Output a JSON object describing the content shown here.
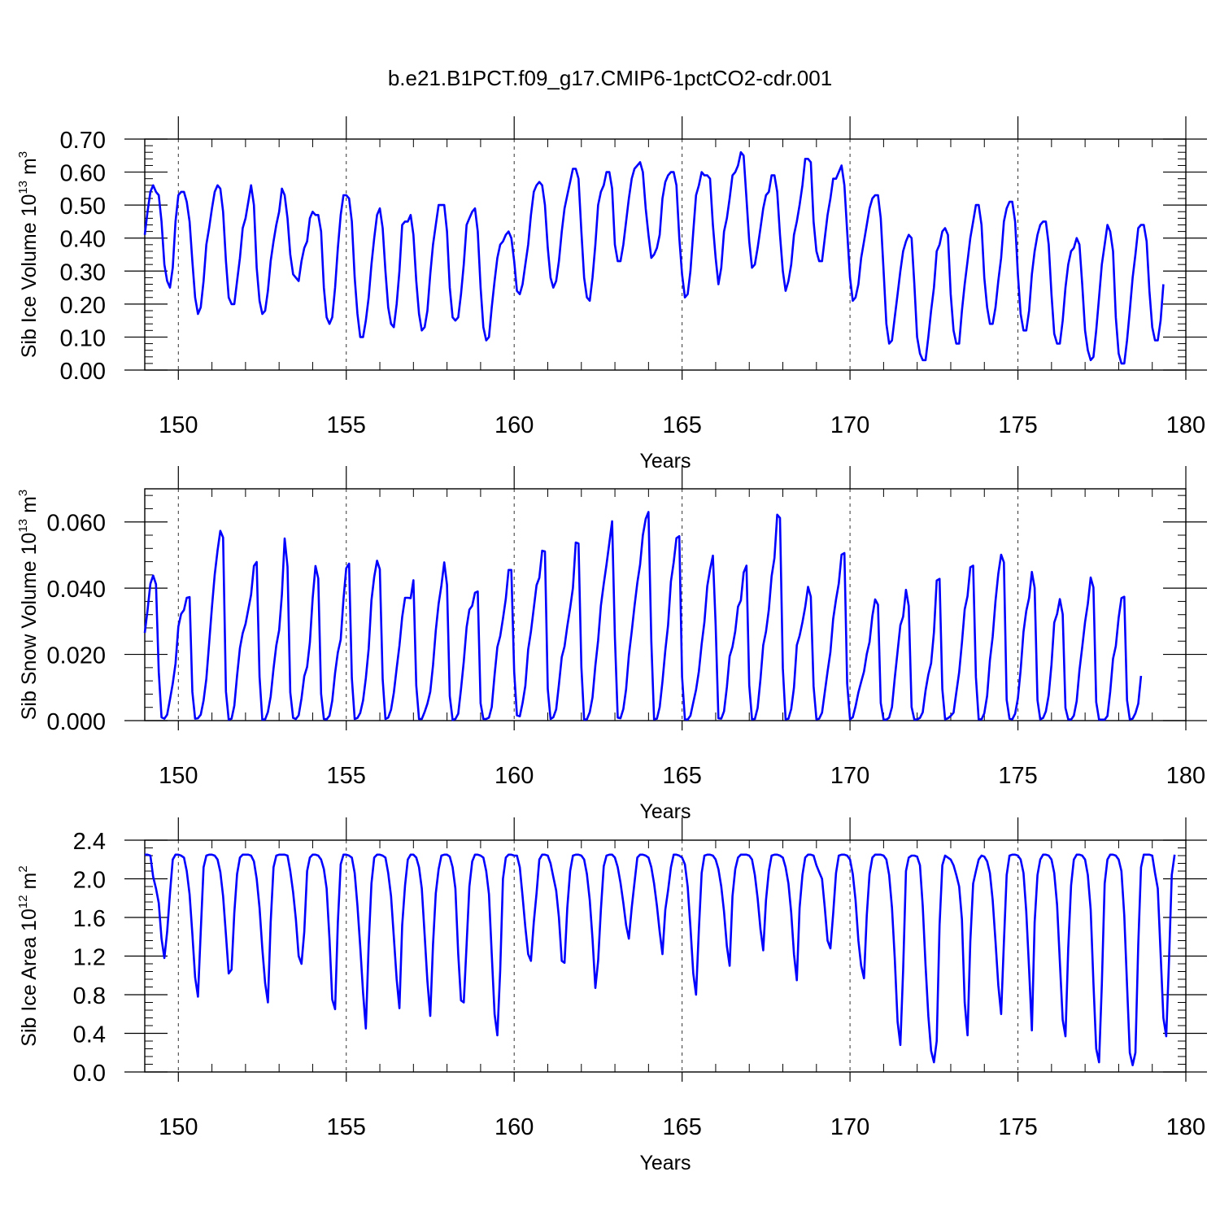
{
  "figure": {
    "title": "b.e21.B1PCT.f09_g17.CMIP6-1pctCO2-cdr.001"
  },
  "chart_data": [
    {
      "type": "line",
      "title": "",
      "xlabel": "Years",
      "ylabel_main": "Sib Ice Volume 10",
      "ylabel_exp": "13",
      "ylabel_unit": " m",
      "ylabel_unit_exp": "3",
      "xlim": [
        149,
        180
      ],
      "ylim": [
        0,
        0.7
      ],
      "x_ticks": [
        150,
        155,
        160,
        165,
        170,
        175,
        180
      ],
      "x_tick_labels": [
        "150",
        "155",
        "160",
        "165",
        "170",
        "175",
        "180"
      ],
      "y_ticks": [
        0,
        0.1,
        0.2,
        0.3,
        0.4,
        0.5,
        0.6,
        0.7
      ],
      "y_tick_labels": [
        "0.00",
        "0.10",
        "0.20",
        "0.30",
        "0.40",
        "0.50",
        "0.60",
        "0.70"
      ],
      "grid": "vertical dashed at major x ticks",
      "color": "#0000ff",
      "x_start": 149.0,
      "x_step": 0.08333,
      "values": [
        0.41,
        0.48,
        0.54,
        0.56,
        0.54,
        0.53,
        0.45,
        0.32,
        0.27,
        0.25,
        0.31,
        0.45,
        0.53,
        0.54,
        0.54,
        0.51,
        0.45,
        0.33,
        0.22,
        0.17,
        0.19,
        0.27,
        0.38,
        0.43,
        0.49,
        0.54,
        0.56,
        0.55,
        0.48,
        0.33,
        0.22,
        0.2,
        0.2,
        0.27,
        0.34,
        0.43,
        0.46,
        0.51,
        0.56,
        0.5,
        0.31,
        0.21,
        0.17,
        0.18,
        0.24,
        0.33,
        0.39,
        0.44,
        0.48,
        0.55,
        0.53,
        0.46,
        0.35,
        0.29,
        0.28,
        0.27,
        0.33,
        0.37,
        0.39,
        0.46,
        0.48,
        0.47,
        0.47,
        0.42,
        0.25,
        0.16,
        0.14,
        0.16,
        0.25,
        0.37,
        0.47,
        0.53,
        0.53,
        0.52,
        0.45,
        0.28,
        0.17,
        0.1,
        0.1,
        0.15,
        0.22,
        0.32,
        0.4,
        0.47,
        0.49,
        0.43,
        0.3,
        0.19,
        0.14,
        0.13,
        0.2,
        0.3,
        0.44,
        0.45,
        0.45,
        0.47,
        0.41,
        0.27,
        0.17,
        0.12,
        0.13,
        0.18,
        0.29,
        0.38,
        0.44,
        0.5,
        0.5,
        0.5,
        0.42,
        0.25,
        0.16,
        0.15,
        0.16,
        0.23,
        0.32,
        0.44,
        0.46,
        0.48,
        0.49,
        0.42,
        0.25,
        0.13,
        0.09,
        0.1,
        0.19,
        0.27,
        0.34,
        0.38,
        0.39,
        0.41,
        0.42,
        0.4,
        0.33,
        0.24,
        0.23,
        0.26,
        0.32,
        0.38,
        0.47,
        0.54,
        0.56,
        0.57,
        0.56,
        0.5,
        0.37,
        0.28,
        0.25,
        0.27,
        0.33,
        0.42,
        0.49,
        0.53,
        0.57,
        0.61,
        0.61,
        0.58,
        0.42,
        0.28,
        0.22,
        0.21,
        0.28,
        0.38,
        0.5,
        0.54,
        0.56,
        0.6,
        0.6,
        0.55,
        0.38,
        0.33,
        0.33,
        0.38,
        0.45,
        0.52,
        0.58,
        0.61,
        0.62,
        0.63,
        0.6,
        0.49,
        0.41,
        0.34,
        0.35,
        0.37,
        0.41,
        0.52,
        0.57,
        0.59,
        0.6,
        0.6,
        0.56,
        0.4,
        0.29,
        0.22,
        0.23,
        0.3,
        0.42,
        0.53,
        0.56,
        0.6,
        0.59,
        0.59,
        0.58,
        0.44,
        0.34,
        0.26,
        0.31,
        0.42,
        0.46,
        0.52,
        0.59,
        0.6,
        0.62,
        0.66,
        0.65,
        0.52,
        0.39,
        0.31,
        0.32,
        0.37,
        0.43,
        0.49,
        0.53,
        0.54,
        0.59,
        0.59,
        0.54,
        0.41,
        0.3,
        0.24,
        0.27,
        0.32,
        0.41,
        0.45,
        0.5,
        0.56,
        0.64,
        0.64,
        0.63,
        0.45,
        0.36,
        0.33,
        0.33,
        0.4,
        0.47,
        0.52,
        0.58,
        0.58,
        0.6,
        0.62,
        0.56,
        0.42,
        0.28,
        0.21,
        0.22,
        0.26,
        0.34,
        0.39,
        0.44,
        0.49,
        0.52,
        0.53,
        0.53,
        0.46,
        0.3,
        0.14,
        0.08,
        0.09,
        0.16,
        0.23,
        0.3,
        0.36,
        0.39,
        0.41,
        0.4,
        0.26,
        0.1,
        0.05,
        0.03,
        0.03,
        0.1,
        0.18,
        0.25,
        0.36,
        0.38,
        0.42,
        0.43,
        0.41,
        0.23,
        0.12,
        0.08,
        0.08,
        0.18,
        0.26,
        0.33,
        0.4,
        0.45,
        0.5,
        0.5,
        0.44,
        0.28,
        0.19,
        0.14,
        0.14,
        0.19,
        0.27,
        0.34,
        0.45,
        0.49,
        0.51,
        0.51,
        0.45,
        0.29,
        0.17,
        0.12,
        0.12,
        0.18,
        0.29,
        0.36,
        0.41,
        0.44,
        0.45,
        0.45,
        0.38,
        0.23,
        0.11,
        0.08,
        0.08,
        0.15,
        0.25,
        0.32,
        0.36,
        0.37,
        0.4,
        0.38,
        0.26,
        0.12,
        0.06,
        0.03,
        0.04,
        0.12,
        0.22,
        0.32,
        0.38,
        0.44,
        0.42,
        0.36,
        0.16,
        0.05,
        0.02,
        0.02,
        0.09,
        0.18,
        0.28,
        0.35,
        0.43,
        0.44,
        0.44,
        0.39,
        0.24,
        0.13,
        0.09,
        0.09,
        0.15,
        0.26
      ]
    },
    {
      "type": "line",
      "title": "",
      "xlabel": "Years",
      "ylabel_main": "Sib Snow Volume 10",
      "ylabel_exp": "13",
      "ylabel_unit": " m",
      "ylabel_unit_exp": "3",
      "xlim": [
        149,
        180
      ],
      "ylim": [
        0,
        0.07
      ],
      "x_ticks": [
        150,
        155,
        160,
        165,
        170,
        175,
        180
      ],
      "x_tick_labels": [
        "150",
        "155",
        "160",
        "165",
        "170",
        "175",
        "180"
      ],
      "y_ticks": [
        0,
        0.02,
        0.04,
        0.06
      ],
      "y_tick_labels": [
        "0.000",
        "0.020",
        "0.040",
        "0.060"
      ],
      "grid": "vertical dashed at major x ticks",
      "color": "#0000ff",
      "x_start": 149.0,
      "x_step": 0.08333,
      "values": [
        0.0265,
        0.0333,
        0.0413,
        0.0438,
        0.0412,
        0.0147,
        0.001,
        0.0006,
        0.0018,
        0.0064,
        0.0112,
        0.0172,
        0.0284,
        0.0322,
        0.0334,
        0.0371,
        0.0373,
        0.0087,
        0.0006,
        0.0007,
        0.0018,
        0.0061,
        0.0126,
        0.0232,
        0.0343,
        0.0441,
        0.0514,
        0.0573,
        0.0553,
        0.0088,
        0.0003,
        0.0006,
        0.0045,
        0.0136,
        0.0219,
        0.0264,
        0.0292,
        0.0336,
        0.038,
        0.0467,
        0.0479,
        0.0133,
        0.0003,
        0.0004,
        0.0026,
        0.0073,
        0.0157,
        0.0227,
        0.0273,
        0.0381,
        0.055,
        0.0465,
        0.0085,
        0.0008,
        0.0005,
        0.0016,
        0.0067,
        0.0134,
        0.0162,
        0.0236,
        0.0369,
        0.0467,
        0.0429,
        0.0081,
        0.0005,
        0.0004,
        0.0015,
        0.006,
        0.0144,
        0.0206,
        0.0245,
        0.0366,
        0.046,
        0.0474,
        0.0128,
        0.0005,
        0.0008,
        0.0023,
        0.0061,
        0.0128,
        0.0217,
        0.0363,
        0.0434,
        0.0483,
        0.0457,
        0.0125,
        0.0005,
        0.0009,
        0.0033,
        0.0084,
        0.0158,
        0.0226,
        0.0313,
        0.0371,
        0.0371,
        0.037,
        0.0424,
        0.0106,
        0.0005,
        0.0005,
        0.0026,
        0.0051,
        0.0087,
        0.0167,
        0.0272,
        0.0353,
        0.0408,
        0.0478,
        0.041,
        0.0074,
        0.0002,
        0.0005,
        0.0021,
        0.0095,
        0.0178,
        0.0282,
        0.0335,
        0.0347,
        0.0386,
        0.039,
        0.0052,
        0.0005,
        0.0005,
        0.0009,
        0.0041,
        0.0138,
        0.0222,
        0.0255,
        0.0308,
        0.0368,
        0.0455,
        0.0455,
        0.0147,
        0.0016,
        0.0013,
        0.0053,
        0.0105,
        0.0215,
        0.0269,
        0.034,
        0.0409,
        0.0431,
        0.0513,
        0.0511,
        0.0095,
        0.0005,
        0.001,
        0.0034,
        0.0109,
        0.0192,
        0.0224,
        0.0285,
        0.034,
        0.04,
        0.0538,
        0.0535,
        0.0162,
        0.0003,
        0.0004,
        0.0025,
        0.007,
        0.0166,
        0.0242,
        0.0347,
        0.0413,
        0.0471,
        0.0537,
        0.0602,
        0.0254,
        0.0009,
        0.0007,
        0.0035,
        0.0095,
        0.0197,
        0.0269,
        0.0345,
        0.0416,
        0.0471,
        0.056,
        0.0609,
        0.063,
        0.024,
        0.0004,
        0.0006,
        0.0041,
        0.0118,
        0.0212,
        0.0288,
        0.042,
        0.0478,
        0.0551,
        0.0557,
        0.0133,
        0.0004,
        0.0003,
        0.0015,
        0.0055,
        0.0093,
        0.0149,
        0.0231,
        0.0298,
        0.0406,
        0.0456,
        0.0498,
        0.0289,
        0.0007,
        0.0006,
        0.0028,
        0.0101,
        0.0194,
        0.0223,
        0.027,
        0.0344,
        0.0363,
        0.0447,
        0.0468,
        0.0107,
        0.0004,
        0.0005,
        0.0038,
        0.0125,
        0.0228,
        0.0269,
        0.0335,
        0.0436,
        0.0491,
        0.0622,
        0.0612,
        0.0158,
        0.0004,
        0.0006,
        0.0035,
        0.01,
        0.0228,
        0.0256,
        0.0297,
        0.0343,
        0.0404,
        0.0374,
        0.0104,
        0.0004,
        0.0006,
        0.0024,
        0.0086,
        0.0148,
        0.0207,
        0.0307,
        0.0366,
        0.0414,
        0.0501,
        0.0506,
        0.0112,
        0.0004,
        0.001,
        0.0043,
        0.0085,
        0.0117,
        0.0148,
        0.0201,
        0.0237,
        0.0316,
        0.0366,
        0.035,
        0.0053,
        0.0003,
        0.0003,
        0.0009,
        0.0041,
        0.0128,
        0.0209,
        0.0288,
        0.0314,
        0.0395,
        0.0346,
        0.0041,
        0.0003,
        0.0004,
        0.0008,
        0.0025,
        0.0091,
        0.0139,
        0.0173,
        0.0267,
        0.0423,
        0.0428,
        0.0095,
        0.0004,
        0.0007,
        0.0014,
        0.0024,
        0.0085,
        0.0146,
        0.0235,
        0.0336,
        0.0376,
        0.0463,
        0.0468,
        0.0131,
        0.0004,
        0.0004,
        0.0022,
        0.0075,
        0.0182,
        0.0253,
        0.0362,
        0.0443,
        0.0501,
        0.0478,
        0.0063,
        0.0006,
        0.0004,
        0.0021,
        0.0067,
        0.0153,
        0.0268,
        0.0331,
        0.0371,
        0.0449,
        0.0401,
        0.0062,
        0.0004,
        0.0008,
        0.0028,
        0.0077,
        0.0169,
        0.0296,
        0.0322,
        0.0367,
        0.0321,
        0.0038,
        0.0004,
        0.0003,
        0.0015,
        0.0059,
        0.0152,
        0.0222,
        0.0298,
        0.0353,
        0.0432,
        0.0402,
        0.0056,
        0.0003,
        0.0003,
        0.0003,
        0.0014,
        0.0087,
        0.0187,
        0.0225,
        0.0311,
        0.037,
        0.0374,
        0.0062,
        0.0004,
        0.0006,
        0.0022,
        0.0051,
        0.0135
      ]
    },
    {
      "type": "line",
      "title": "",
      "xlabel": "Years",
      "ylabel_main": "Sib Ice Area 10",
      "ylabel_exp": "12",
      "ylabel_unit": " m",
      "ylabel_unit_exp": "2",
      "xlim": [
        149,
        180
      ],
      "ylim": [
        0,
        2.4
      ],
      "x_ticks": [
        150,
        155,
        160,
        165,
        170,
        175,
        180
      ],
      "x_tick_labels": [
        "150",
        "155",
        "160",
        "165",
        "170",
        "175",
        "180"
      ],
      "y_ticks": [
        0,
        0.4,
        0.8,
        1.2,
        1.6,
        2.0,
        2.4
      ],
      "y_tick_labels": [
        "0.0",
        "0.4",
        "0.8",
        "1.2",
        "1.6",
        "2.0",
        "2.4"
      ],
      "grid": "vertical dashed at major x ticks",
      "color": "#0000ff",
      "x_start": 149.0,
      "x_step": 0.08333,
      "values": [
        2.25,
        2.25,
        2.24,
        2.02,
        1.9,
        1.75,
        1.38,
        1.18,
        1.45,
        1.85,
        2.2,
        2.25,
        2.25,
        2.24,
        2.22,
        2.08,
        1.84,
        1.43,
        0.98,
        0.78,
        1.45,
        2.12,
        2.24,
        2.25,
        2.25,
        2.24,
        2.2,
        2.07,
        1.82,
        1.42,
        1.02,
        1.06,
        1.65,
        2.05,
        2.22,
        2.25,
        2.25,
        2.25,
        2.24,
        2.18,
        2.0,
        1.7,
        1.28,
        0.92,
        0.72,
        1.55,
        2.12,
        2.24,
        2.25,
        2.25,
        2.25,
        2.24,
        2.08,
        1.86,
        1.58,
        1.2,
        1.12,
        1.45,
        2.08,
        2.22,
        2.25,
        2.25,
        2.24,
        2.2,
        2.1,
        1.9,
        1.38,
        0.75,
        0.65,
        1.55,
        2.15,
        2.25,
        2.25,
        2.24,
        2.22,
        2.06,
        1.72,
        1.3,
        0.82,
        0.45,
        1.32,
        1.95,
        2.22,
        2.25,
        2.25,
        2.24,
        2.22,
        2.06,
        1.82,
        1.4,
        0.96,
        0.66,
        1.52,
        1.93,
        2.2,
        2.25,
        2.25,
        2.22,
        2.12,
        1.9,
        1.42,
        0.94,
        0.58,
        1.32,
        1.85,
        2.1,
        2.24,
        2.25,
        2.25,
        2.23,
        2.12,
        1.9,
        1.22,
        0.74,
        0.72,
        1.32,
        1.92,
        2.18,
        2.25,
        2.25,
        2.24,
        2.22,
        2.08,
        1.84,
        1.22,
        0.6,
        0.38,
        1.05,
        2.0,
        2.22,
        2.25,
        2.25,
        2.24,
        2.24,
        2.12,
        1.82,
        1.5,
        1.22,
        1.15,
        1.55,
        1.85,
        2.2,
        2.25,
        2.25,
        2.24,
        2.16,
        2.02,
        1.88,
        1.6,
        1.15,
        1.13,
        1.7,
        2.08,
        2.24,
        2.25,
        2.25,
        2.24,
        2.2,
        2.05,
        1.78,
        1.38,
        0.87,
        1.15,
        1.68,
        2.13,
        2.24,
        2.25,
        2.25,
        2.22,
        2.12,
        1.96,
        1.75,
        1.52,
        1.38,
        1.7,
        1.96,
        2.22,
        2.25,
        2.25,
        2.24,
        2.22,
        2.12,
        1.95,
        1.72,
        1.45,
        1.22,
        1.68,
        1.88,
        2.12,
        2.25,
        2.25,
        2.24,
        2.22,
        2.15,
        1.92,
        1.5,
        1.02,
        0.8,
        1.48,
        2.06,
        2.24,
        2.25,
        2.25,
        2.24,
        2.2,
        2.1,
        1.92,
        1.66,
        1.3,
        1.1,
        1.82,
        2.1,
        2.22,
        2.25,
        2.25,
        2.25,
        2.24,
        2.2,
        2.04,
        1.8,
        1.48,
        1.26,
        1.78,
        2.08,
        2.24,
        2.25,
        2.25,
        2.24,
        2.22,
        2.12,
        1.95,
        1.65,
        1.22,
        0.95,
        1.7,
        2.04,
        2.22,
        2.25,
        2.25,
        2.24,
        2.14,
        2.07,
        2.0,
        1.7,
        1.36,
        1.28,
        1.64,
        2.06,
        2.24,
        2.25,
        2.25,
        2.24,
        2.2,
        2.05,
        1.78,
        1.36,
        1.1,
        0.97,
        1.62,
        2.05,
        2.22,
        2.25,
        2.25,
        2.25,
        2.24,
        2.2,
        2.04,
        1.7,
        1.18,
        0.52,
        0.28,
        1.05,
        2.08,
        2.22,
        2.24,
        2.24,
        2.23,
        2.14,
        1.72,
        1.1,
        0.58,
        0.22,
        0.1,
        0.32,
        1.52,
        2.14,
        2.24,
        2.22,
        2.2,
        2.14,
        2.04,
        1.92,
        1.58,
        0.72,
        0.38,
        1.35,
        1.95,
        2.08,
        2.2,
        2.24,
        2.23,
        2.18,
        2.06,
        1.78,
        1.35,
        0.9,
        0.6,
        1.34,
        2.04,
        2.24,
        2.25,
        2.25,
        2.24,
        2.2,
        2.06,
        1.66,
        1.06,
        0.43,
        1.55,
        2.04,
        2.2,
        2.25,
        2.25,
        2.24,
        2.2,
        2.06,
        1.73,
        1.14,
        0.54,
        0.37,
        1.28,
        1.93,
        2.2,
        2.25,
        2.25,
        2.24,
        2.2,
        2.04,
        1.68,
        0.92,
        0.24,
        0.1,
        0.9,
        1.95,
        2.2,
        2.25,
        2.25,
        2.24,
        2.2,
        2.08,
        1.62,
        0.9,
        0.2,
        0.07,
        0.2,
        1.32,
        2.12,
        2.25,
        2.25,
        2.25,
        2.24,
        2.06,
        1.9,
        1.22,
        0.56,
        0.37,
        1.15,
        2.04,
        2.25
      ]
    }
  ]
}
